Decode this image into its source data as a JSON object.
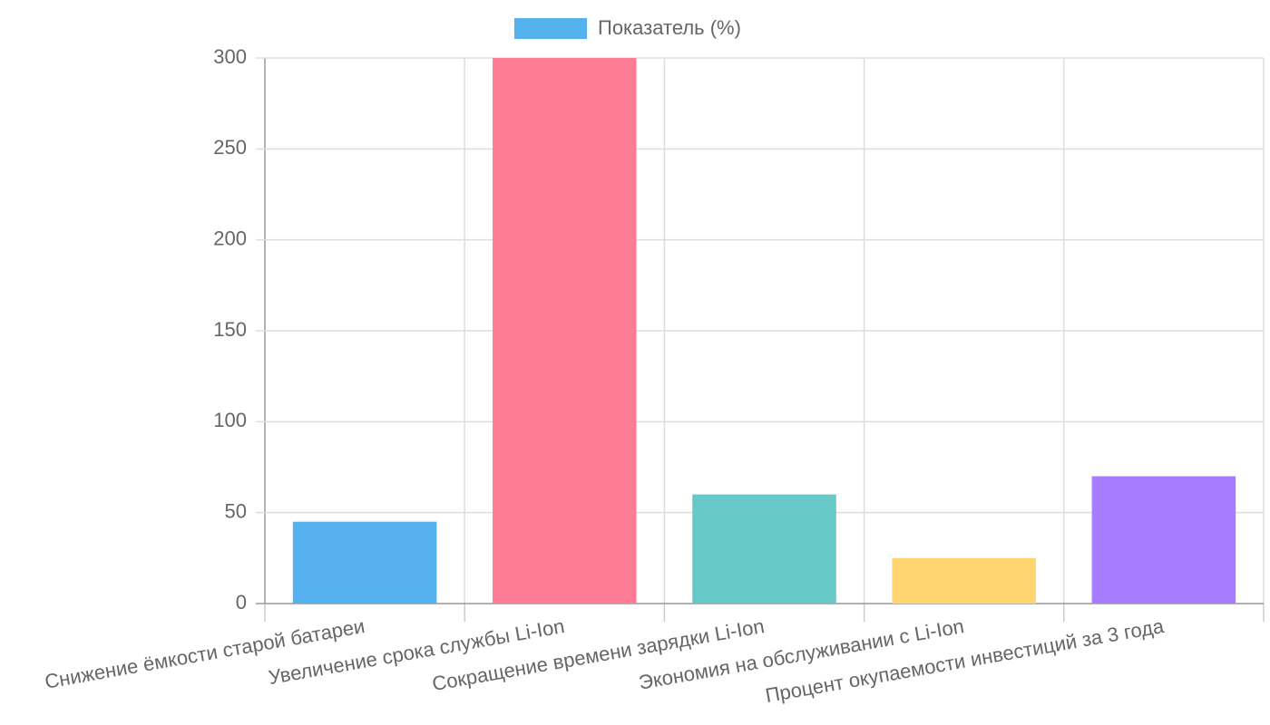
{
  "chart_data": {
    "type": "bar",
    "categories": [
      "Снижение ёмкости старой батареи",
      "Увеличение срока службы Li-Ion",
      "Сокращение времени зарядки Li-Ion",
      "Экономия на обслуживании с Li-Ion",
      "Процент окупаемости инвестиций за 3 года"
    ],
    "series": [
      {
        "name": "Показатель (%)",
        "color": "#55b0ee",
        "colors": [
          "#55b0ee",
          "#ff7b96",
          "#67c8c8",
          "#ffd572",
          "#a77cfe"
        ],
        "values": [
          45,
          300,
          60,
          25,
          70
        ]
      }
    ],
    "ylim": [
      0,
      300
    ],
    "yticks": [
      0,
      50,
      100,
      150,
      200,
      250,
      300
    ],
    "grid": true,
    "legend": "top"
  }
}
